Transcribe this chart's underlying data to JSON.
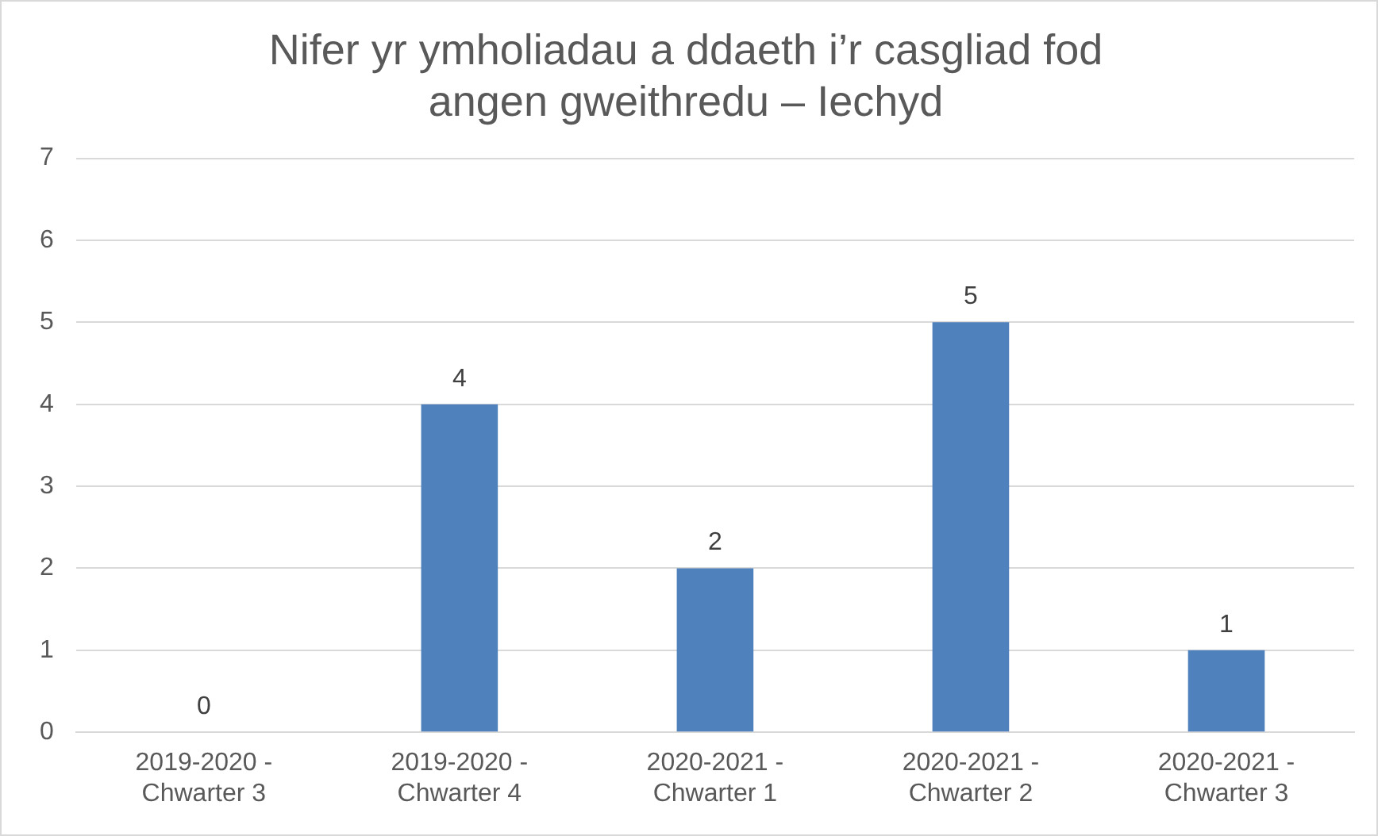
{
  "chart_data": {
    "type": "bar",
    "title": "Nifer yr ymholiadau a ddaeth i’r casgliad fod angen gweithredu – Iechyd",
    "categories": [
      "2019-2020 - Chwarter 3",
      "2019-2020 - Chwarter 4",
      "2020-2021 - Chwarter 1",
      "2020-2021 - Chwarter 2",
      "2020-2021 - Chwarter 3"
    ],
    "values": [
      0,
      4,
      2,
      5,
      1
    ],
    "color": "#4f81bd",
    "ylim": [
      0,
      7
    ],
    "yticks": [
      0,
      1,
      2,
      3,
      4,
      5,
      6,
      7
    ],
    "grid": "y",
    "data_labels": true
  }
}
